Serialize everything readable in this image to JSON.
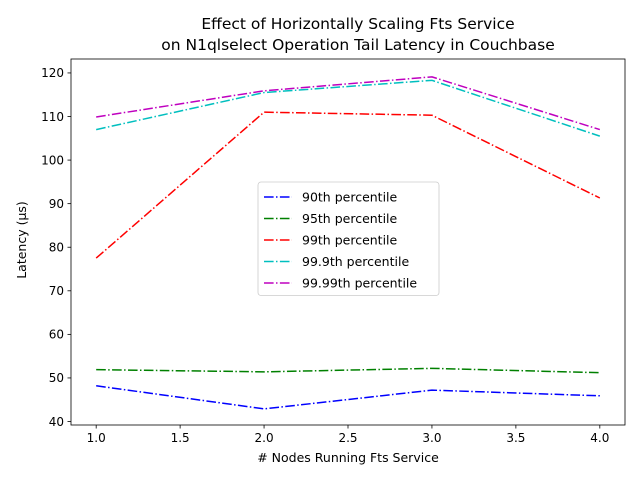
{
  "chart_data": {
    "type": "line",
    "title_lines": [
      "Effect of Horizontally Scaling Fts Service",
      "on N1qlselect Operation Tail Latency in Couchbase"
    ],
    "xlabel": "# Nodes Running Fts Service",
    "ylabel": "Latency (µs)",
    "xlim": [
      0.85,
      4.15
    ],
    "ylim": [
      39.2,
      123.2
    ],
    "x_ticks": [
      1.0,
      1.5,
      2.0,
      2.5,
      3.0,
      3.5,
      4.0
    ],
    "x_tick_labels": [
      "1.0",
      "1.5",
      "2.0",
      "2.5",
      "3.0",
      "3.5",
      "4.0"
    ],
    "y_ticks": [
      40,
      50,
      60,
      70,
      80,
      90,
      100,
      110,
      120
    ],
    "y_tick_labels": [
      "40",
      "50",
      "60",
      "70",
      "80",
      "90",
      "100",
      "110",
      "120"
    ],
    "grid": false,
    "legend_position": "center",
    "x": [
      1,
      2,
      3,
      4
    ],
    "series": [
      {
        "name": "90th percentile",
        "color": "#0000ff",
        "values": [
          48.2,
          42.9,
          47.2,
          45.9
        ]
      },
      {
        "name": "95th percentile",
        "color": "#008000",
        "values": [
          51.9,
          51.4,
          52.2,
          51.2
        ]
      },
      {
        "name": "99th percentile",
        "color": "#ff0000",
        "values": [
          77.5,
          111.0,
          110.3,
          91.3
        ]
      },
      {
        "name": "99.9th percentile",
        "color": "#00bfbf",
        "values": [
          107.0,
          115.5,
          118.3,
          105.5
        ]
      },
      {
        "name": "99.99th percentile",
        "color": "#bf00bf",
        "values": [
          109.9,
          115.9,
          119.1,
          107.0
        ]
      }
    ]
  }
}
